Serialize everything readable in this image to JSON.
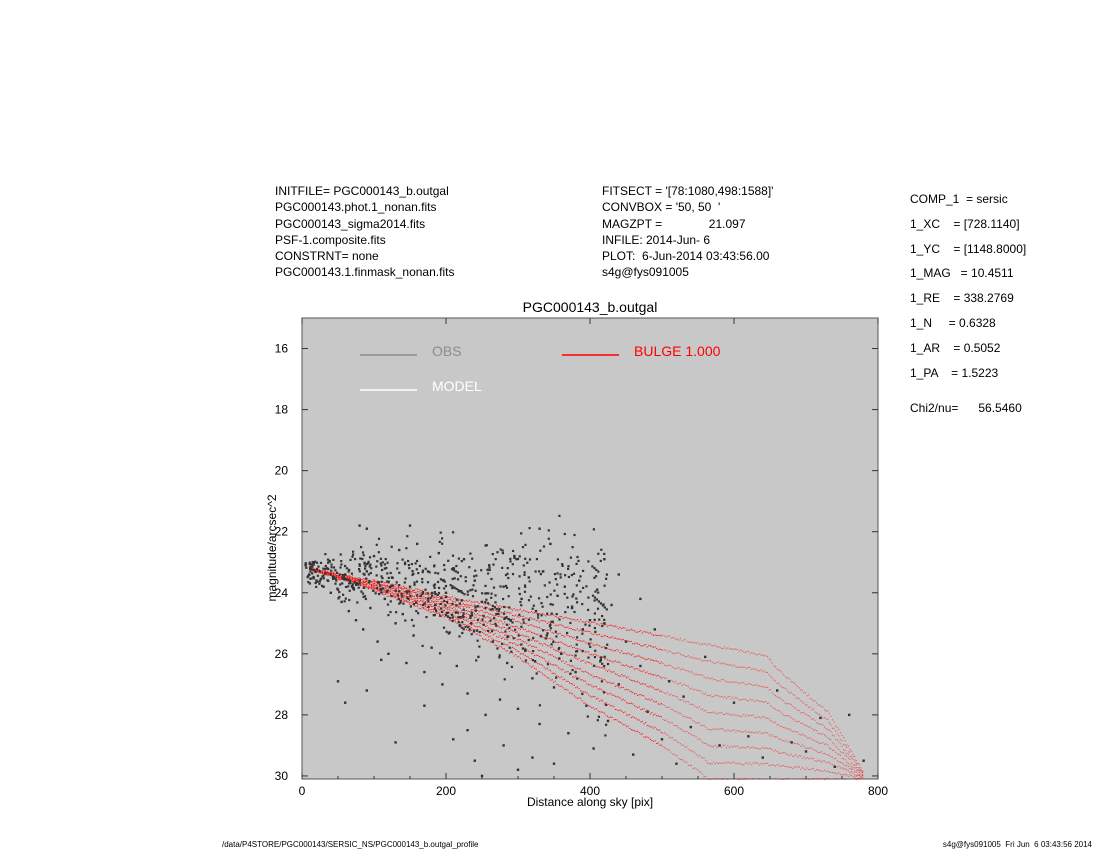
{
  "header_left": [
    "INITFILE= PGC000143_b.outgal",
    "PGC000143.phot.1_nonan.fits",
    "PGC000143_sigma2014.fits",
    "PSF-1.composite.fits",
    "CONSTRNT= none",
    "PGC000143.1.finmask_nonan.fits"
  ],
  "header_mid": [
    "FITSECT = '[78:1080,498:1588]'",
    "CONVBOX = '50, 50  '",
    "MAGZPT =              21.097",
    "INFILE: 2014-Jun- 6",
    "PLOT:  6-Jun-2014 03:43:56.00",
    "s4g@fys091005"
  ],
  "params": [
    "COMP_1  = sersic",
    "1_XC    = [728.1140]",
    "1_YC    = [1148.8000]",
    "1_MAG   = 10.4511",
    "1_RE    = 338.2769",
    "1_N     = 0.6328",
    "1_AR    = 0.5052",
    "1_PA    = 1.5223"
  ],
  "chi2": "Chi2/nu=      56.5460",
  "footer_left": "/data/P4STORE/PGC000143/SERSIC_NS/PGC000143_b.outgal_profile",
  "footer_right": "s4g@fys091005  Fri Jun  6 03:43:56 2014",
  "colors": {
    "obs": "#8c8c8c",
    "model": "#ffffff",
    "bulge": "#ff0000",
    "points": "#333333",
    "plot_bg": "#c8c8c8"
  },
  "chart_data": {
    "type": "scatter",
    "title": "PGC000143_b.outgal",
    "xlabel": "Distance along sky [pix]",
    "ylabel": "magnitude/arcsec^2",
    "xlim": [
      0,
      800
    ],
    "ylim": [
      30.1,
      15.0
    ],
    "xticks": [
      0,
      200,
      400,
      600,
      800
    ],
    "yticks": [
      16,
      18,
      20,
      22,
      24,
      26,
      28,
      30
    ],
    "legend": [
      {
        "name": "OBS",
        "color": "#8c8c8c"
      },
      {
        "name": "MODEL",
        "color": "#ffffff"
      },
      {
        "name": "BULGE  1.000",
        "color": "#ff0000"
      }
    ],
    "obs_points": [
      [
        5,
        23.1
      ],
      [
        10,
        23.4
      ],
      [
        15,
        23.0
      ],
      [
        20,
        23.6
      ],
      [
        25,
        23.3
      ],
      [
        30,
        23.8
      ],
      [
        35,
        23.2
      ],
      [
        40,
        24.0
      ],
      [
        45,
        23.5
      ],
      [
        50,
        23.9
      ],
      [
        55,
        24.3
      ],
      [
        60,
        23.4
      ],
      [
        65,
        24.6
      ],
      [
        70,
        23.8
      ],
      [
        75,
        24.9
      ],
      [
        80,
        23.6
      ],
      [
        85,
        25.2
      ],
      [
        90,
        23.3
      ],
      [
        95,
        24.5
      ],
      [
        100,
        22.8
      ],
      [
        105,
        25.6
      ],
      [
        110,
        23.9
      ],
      [
        115,
        24.2
      ],
      [
        120,
        26.0
      ],
      [
        125,
        23.5
      ],
      [
        130,
        25.0
      ],
      [
        135,
        22.6
      ],
      [
        140,
        24.7
      ],
      [
        145,
        26.3
      ],
      [
        150,
        23.8
      ],
      [
        155,
        25.4
      ],
      [
        160,
        22.4
      ],
      [
        165,
        24.1
      ],
      [
        170,
        26.6
      ],
      [
        175,
        23.3
      ],
      [
        180,
        25.8
      ],
      [
        185,
        24.4
      ],
      [
        190,
        22.7
      ],
      [
        195,
        27.0
      ],
      [
        200,
        24.0
      ],
      [
        205,
        25.3
      ],
      [
        210,
        23.2
      ],
      [
        215,
        26.4
      ],
      [
        220,
        24.8
      ],
      [
        225,
        22.9
      ],
      [
        230,
        27.3
      ],
      [
        235,
        25.0
      ],
      [
        240,
        23.6
      ],
      [
        245,
        26.1
      ],
      [
        250,
        24.3
      ],
      [
        255,
        28.0
      ],
      [
        260,
        23.1
      ],
      [
        265,
        25.6
      ],
      [
        270,
        24.7
      ],
      [
        275,
        27.5
      ],
      [
        280,
        23.8
      ],
      [
        285,
        26.3
      ],
      [
        290,
        24.9
      ],
      [
        295,
        22.8
      ],
      [
        300,
        27.8
      ],
      [
        305,
        24.2
      ],
      [
        310,
        25.9
      ],
      [
        315,
        23.5
      ],
      [
        320,
        26.8
      ],
      [
        325,
        24.6
      ],
      [
        330,
        28.3
      ],
      [
        335,
        23.3
      ],
      [
        340,
        25.4
      ],
      [
        345,
        22.4
      ],
      [
        350,
        27.1
      ],
      [
        355,
        24.1
      ],
      [
        360,
        26.0
      ],
      [
        365,
        23.8
      ],
      [
        370,
        28.6
      ],
      [
        375,
        24.5
      ],
      [
        380,
        26.6
      ],
      [
        385,
        23.6
      ],
      [
        390,
        25.2
      ],
      [
        395,
        27.7
      ],
      [
        400,
        24.9
      ],
      [
        405,
        29.1
      ],
      [
        410,
        23.9
      ],
      [
        415,
        26.2
      ],
      [
        420,
        25.0
      ],
      [
        425,
        28.2
      ],
      [
        430,
        24.4
      ],
      [
        440,
        27.0
      ],
      [
        450,
        25.6
      ],
      [
        460,
        29.3
      ],
      [
        470,
        26.4
      ],
      [
        480,
        27.9
      ],
      [
        490,
        25.2
      ],
      [
        500,
        28.8
      ],
      [
        510,
        26.9
      ],
      [
        520,
        29.6
      ],
      [
        530,
        27.4
      ],
      [
        540,
        28.4
      ],
      [
        560,
        26.1
      ],
      [
        580,
        29.0
      ],
      [
        600,
        27.6
      ],
      [
        620,
        28.7
      ],
      [
        640,
        29.4
      ],
      [
        660,
        27.2
      ],
      [
        680,
        28.9
      ],
      [
        700,
        29.2
      ],
      [
        720,
        28.1
      ],
      [
        740,
        29.7
      ],
      [
        760,
        28.0
      ],
      [
        780,
        29.5
      ],
      [
        50,
        26.9
      ],
      [
        60,
        27.6
      ],
      [
        80,
        21.8
      ],
      [
        90,
        21.9
      ],
      [
        150,
        21.8
      ],
      [
        230,
        28.5
      ],
      [
        240,
        29.5
      ],
      [
        280,
        29.0
      ],
      [
        320,
        29.4
      ],
      [
        330,
        21.9
      ],
      [
        90,
        27.2
      ],
      [
        110,
        26.2
      ],
      [
        130,
        28.9
      ],
      [
        170,
        27.7
      ],
      [
        210,
        28.8
      ],
      [
        250,
        30.0
      ],
      [
        300,
        29.8
      ],
      [
        350,
        29.6
      ],
      [
        420,
        22.9
      ],
      [
        440,
        23.4
      ],
      [
        470,
        24.2
      ]
    ],
    "bulge_envelope": {
      "upper": [
        [
          10,
          23.2
        ],
        [
          100,
          23.6
        ],
        [
          200,
          24.1
        ],
        [
          300,
          24.55
        ],
        [
          400,
          24.95
        ],
        [
          500,
          25.4
        ],
        [
          645,
          26.05
        ],
        [
          660,
          26.5
        ],
        [
          730,
          27.9
        ],
        [
          780,
          29.9
        ]
      ],
      "lower": [
        [
          10,
          23.2
        ],
        [
          100,
          23.9
        ],
        [
          200,
          24.8
        ],
        [
          300,
          26.1
        ],
        [
          400,
          27.7
        ],
        [
          500,
          29.0
        ],
        [
          560,
          30.0
        ]
      ]
    }
  }
}
